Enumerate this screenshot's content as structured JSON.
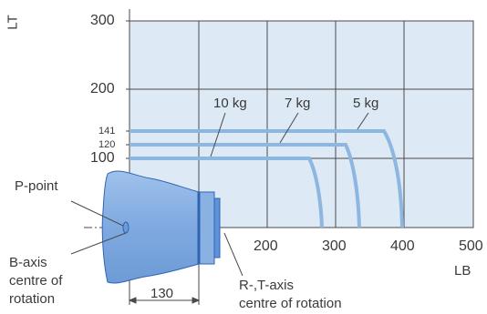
{
  "axes": {
    "y_title": "LT",
    "x_title": "LB",
    "y_ticks": [
      "300",
      "200",
      "100"
    ],
    "y_small_ticks": [
      "141",
      "120"
    ],
    "x_ticks": [
      "200",
      "300",
      "400",
      "500"
    ]
  },
  "curves": [
    {
      "label": "10 kg",
      "reach_height": "100"
    },
    {
      "label": "7 kg",
      "reach_height": "120"
    },
    {
      "label": "5 kg",
      "reach_height": "141"
    }
  ],
  "annotations": {
    "p_point": "P-point",
    "b_axis": [
      "B-axis",
      "centre of",
      "rotation"
    ],
    "rt_axis": [
      "R-,T-axis",
      "centre of rotation"
    ],
    "dimension": "130"
  },
  "colors": {
    "grid_fill": "#dde9f5",
    "grid_line": "#4a4a4a",
    "curve": "#8db6e0",
    "body_fill": "#89b2e3",
    "body_dark": "#2f63b4",
    "text": "#3a3a3a"
  }
}
